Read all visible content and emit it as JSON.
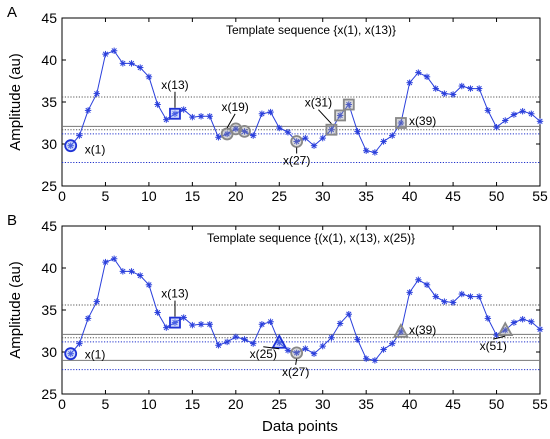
{
  "figure": {
    "xlabel": "Data points"
  },
  "chart_data": [
    {
      "type": "line",
      "panel_label": "A",
      "title": "Template sequence  {x(1), x(13)}",
      "ylabel": "Amplitude (au)",
      "xlabel": "",
      "xlim": [
        0,
        55
      ],
      "ylim": [
        25,
        45
      ],
      "xticks": [
        0,
        5,
        10,
        15,
        20,
        25,
        30,
        35,
        40,
        45,
        50,
        55
      ],
      "yticks": [
        25,
        30,
        35,
        40,
        45
      ],
      "grid": false,
      "series": [
        {
          "x": [
            1,
            2,
            3,
            4,
            5,
            6,
            7,
            8,
            9,
            10,
            11,
            12,
            13,
            14,
            15,
            16,
            17,
            18,
            19,
            20,
            21,
            22,
            23,
            24,
            25,
            26,
            27,
            28,
            29,
            30,
            31,
            32,
            33,
            34,
            35,
            36,
            37,
            38,
            39,
            40,
            41,
            42,
            43,
            44,
            45,
            46,
            47,
            48,
            49,
            50,
            51,
            52,
            53,
            54,
            55
          ],
          "values": [
            29.8,
            31.0,
            34.0,
            36.0,
            40.7,
            41.1,
            39.6,
            39.6,
            39.1,
            38.0,
            34.7,
            32.9,
            33.6,
            34.1,
            33.2,
            33.3,
            33.3,
            30.8,
            31.2,
            31.8,
            31.5,
            31.0,
            33.6,
            33.8,
            31.9,
            31.4,
            30.3,
            30.7,
            29.8,
            30.7,
            31.7,
            33.4,
            34.7,
            31.5,
            29.2,
            29.0,
            30.3,
            31.0,
            32.5,
            37.3,
            38.5,
            38.0,
            36.6,
            36.0,
            35.9,
            36.9,
            36.6,
            36.6,
            34.0,
            32.0,
            32.8,
            33.5,
            33.9,
            33.6,
            32.7
          ]
        }
      ],
      "reference_lines": [
        {
          "y": 35.6,
          "style": "dotted",
          "color": "#555555"
        },
        {
          "y": 32.1,
          "style": "solid",
          "color": "#777777"
        },
        {
          "y": 31.7,
          "style": "dotted",
          "color": "#555555"
        },
        {
          "y": 31.2,
          "style": "dotted",
          "color": "#2233cc"
        },
        {
          "y": 27.8,
          "style": "dotted",
          "color": "#2233cc"
        }
      ],
      "markers": [
        {
          "x": 1,
          "y": 29.8,
          "shape": "circle",
          "color": "#1f33d6"
        },
        {
          "x": 13,
          "y": 33.6,
          "shape": "square",
          "color": "#1f33d6"
        },
        {
          "x": 19,
          "y": 31.2,
          "shape": "circle",
          "color": "#888888"
        },
        {
          "x": 20,
          "y": 31.8,
          "shape": "circle",
          "color": "#888888"
        },
        {
          "x": 21,
          "y": 31.5,
          "shape": "circle",
          "color": "#888888"
        },
        {
          "x": 27,
          "y": 30.3,
          "shape": "circle",
          "color": "#888888"
        },
        {
          "x": 31,
          "y": 31.7,
          "shape": "square",
          "color": "#888888"
        },
        {
          "x": 32,
          "y": 33.4,
          "shape": "square",
          "color": "#888888"
        },
        {
          "x": 33,
          "y": 34.7,
          "shape": "square",
          "color": "#888888"
        },
        {
          "x": 39,
          "y": 32.5,
          "shape": "square",
          "color": "#888888"
        }
      ],
      "annotations": [
        {
          "text": "x(1)",
          "x": 1,
          "y": 29.8,
          "dx": 14,
          "dy": 8,
          "anchor": "start",
          "leader": false
        },
        {
          "text": "x(13)",
          "x": 13,
          "y": 33.6,
          "dx": 0,
          "dy": -25,
          "anchor": "middle",
          "leader": true
        },
        {
          "text": "x(19)",
          "x": 19,
          "y": 31.2,
          "dx": 8,
          "dy": -23,
          "anchor": "middle",
          "leader": true
        },
        {
          "text": "x(31)",
          "x": 31,
          "y": 31.7,
          "dx": -13,
          "dy": -23,
          "anchor": "middle",
          "leader": true
        },
        {
          "text": "x(39)",
          "x": 39,
          "y": 32.5,
          "dx": 8,
          "dy": 2,
          "anchor": "start",
          "leader": false
        },
        {
          "text": "x(27)",
          "x": 27,
          "y": 30.3,
          "dx": 0,
          "dy": 23,
          "anchor": "middle",
          "leader": true
        }
      ]
    },
    {
      "type": "line",
      "panel_label": "B",
      "title": "Template sequence {(x(1), x(13), x(25)}",
      "ylabel": "Amplitude (au)",
      "xlabel": "Data points",
      "xlim": [
        0,
        55
      ],
      "ylim": [
        25,
        45
      ],
      "xticks": [
        0,
        5,
        10,
        15,
        20,
        25,
        30,
        35,
        40,
        45,
        50,
        55
      ],
      "yticks": [
        25,
        30,
        35,
        40,
        45
      ],
      "grid": false,
      "series": [
        {
          "x": [
            1,
            2,
            3,
            4,
            5,
            6,
            7,
            8,
            9,
            10,
            11,
            12,
            13,
            14,
            15,
            16,
            17,
            18,
            19,
            20,
            21,
            22,
            23,
            24,
            25,
            26,
            27,
            28,
            29,
            30,
            31,
            32,
            33,
            34,
            35,
            36,
            37,
            38,
            39,
            40,
            41,
            42,
            43,
            44,
            45,
            46,
            47,
            48,
            49,
            50,
            51,
            52,
            53,
            54,
            55
          ],
          "values": [
            29.8,
            31.0,
            34.0,
            36.0,
            40.7,
            41.1,
            39.6,
            39.6,
            39.1,
            38.0,
            34.7,
            32.9,
            33.5,
            34.1,
            33.2,
            33.3,
            33.3,
            30.8,
            31.2,
            31.8,
            31.5,
            31.0,
            33.3,
            33.6,
            31.1,
            30.2,
            29.9,
            30.4,
            29.8,
            30.7,
            31.7,
            33.4,
            34.5,
            31.5,
            29.2,
            29.0,
            30.3,
            31.0,
            32.4,
            37.1,
            38.6,
            38.0,
            36.6,
            36.0,
            35.9,
            36.9,
            36.6,
            36.6,
            34.0,
            32.0,
            32.6,
            33.5,
            33.9,
            33.6,
            32.7
          ]
        }
      ],
      "reference_lines": [
        {
          "y": 35.6,
          "style": "dotted",
          "color": "#555555"
        },
        {
          "y": 32.1,
          "style": "solid",
          "color": "#777777"
        },
        {
          "y": 31.7,
          "style": "dotted",
          "color": "#555555"
        },
        {
          "y": 31.2,
          "style": "dotted",
          "color": "#2233cc"
        },
        {
          "y": 29.0,
          "style": "solid",
          "color": "#777777"
        },
        {
          "y": 27.9,
          "style": "dotted",
          "color": "#2233cc"
        }
      ],
      "markers": [
        {
          "x": 1,
          "y": 29.8,
          "shape": "circle",
          "color": "#1f33d6"
        },
        {
          "x": 13,
          "y": 33.5,
          "shape": "square",
          "color": "#1f33d6"
        },
        {
          "x": 25,
          "y": 31.1,
          "shape": "triangle",
          "color": "#1f33d6"
        },
        {
          "x": 27,
          "y": 29.9,
          "shape": "circle",
          "color": "#888888"
        },
        {
          "x": 39,
          "y": 32.4,
          "shape": "triangle",
          "color": "#888888"
        },
        {
          "x": 51,
          "y": 32.6,
          "shape": "triangle",
          "color": "#888888"
        }
      ],
      "annotations": [
        {
          "text": "x(1)",
          "x": 1,
          "y": 29.8,
          "dx": 14,
          "dy": 5,
          "anchor": "start",
          "leader": false
        },
        {
          "text": "x(13)",
          "x": 13,
          "y": 33.5,
          "dx": 0,
          "dy": -25,
          "anchor": "middle",
          "leader": true
        },
        {
          "text": "x(25)",
          "x": 25,
          "y": 31.1,
          "dx": -16,
          "dy": 15,
          "anchor": "middle",
          "leader": true
        },
        {
          "text": "x(27)",
          "x": 27,
          "y": 29.9,
          "dx": -1,
          "dy": 23,
          "anchor": "middle",
          "leader": true
        },
        {
          "text": "x(39)",
          "x": 39,
          "y": 32.4,
          "dx": 8,
          "dy": 2,
          "anchor": "start",
          "leader": false
        },
        {
          "text": "x(51)",
          "x": 51,
          "y": 32.6,
          "dx": -12,
          "dy": 20,
          "anchor": "middle",
          "leader": true
        }
      ]
    }
  ]
}
